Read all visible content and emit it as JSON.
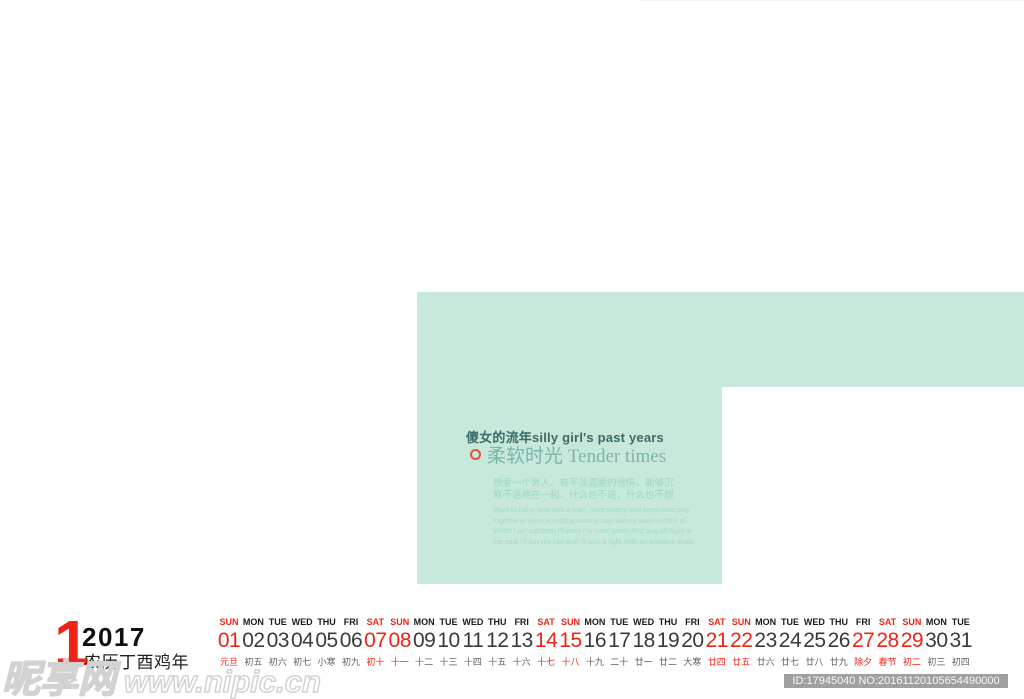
{
  "colors": {
    "mint": "#c6e9db",
    "accent_red": "#ee2417",
    "title_dark_teal": "#3e6a6a",
    "title_teal": "#7eb4ac",
    "watermark_bar_gray": "#a0a0a0"
  },
  "hero": {
    "title_line1": "傻女的流年silly girl's past years",
    "title_line2": "柔软时光 Tender times",
    "paragraph_cn": [
      "想爱一个男人、有平淡温暖的感情，能够沉",
      "默不语地在一起，什么也不说，什么也不想"
    ],
    "paragraph_en": [
      "Want to fall in love with a man ,have watery and warm love,stay",
      "together in silence,nothing want to say,nothing want to think of.",
      "When I am eighteen I'll paint my nose green And sing all night in",
      "the park I'll buy my kite And I'll pick a fight With an imitation shark"
    ]
  },
  "calendar": {
    "month_number": "1",
    "year": "2017",
    "lunar_year_label": "农历丁酉鸡年",
    "days": [
      {
        "dow": "SUN",
        "date": "01",
        "lunar": "元旦",
        "dow_c": "red",
        "date_c": "red",
        "lunar_c": "red"
      },
      {
        "dow": "MON",
        "date": "02",
        "lunar": "初五",
        "dow_c": "",
        "date_c": "",
        "lunar_c": ""
      },
      {
        "dow": "TUE",
        "date": "03",
        "lunar": "初六",
        "dow_c": "",
        "date_c": "",
        "lunar_c": ""
      },
      {
        "dow": "WED",
        "date": "04",
        "lunar": "初七",
        "dow_c": "",
        "date_c": "",
        "lunar_c": ""
      },
      {
        "dow": "THU",
        "date": "05",
        "lunar": "小寒",
        "dow_c": "",
        "date_c": "",
        "lunar_c": ""
      },
      {
        "dow": "FRI",
        "date": "06",
        "lunar": "初九",
        "dow_c": "",
        "date_c": "",
        "lunar_c": ""
      },
      {
        "dow": "SAT",
        "date": "07",
        "lunar": "初十",
        "dow_c": "red",
        "date_c": "red",
        "lunar_c": "red"
      },
      {
        "dow": "SUN",
        "date": "08",
        "lunar": "十一",
        "dow_c": "red",
        "date_c": "red",
        "lunar_c": "red"
      },
      {
        "dow": "MON",
        "date": "09",
        "lunar": "十二",
        "dow_c": "",
        "date_c": "",
        "lunar_c": ""
      },
      {
        "dow": "TUE",
        "date": "10",
        "lunar": "十三",
        "dow_c": "",
        "date_c": "",
        "lunar_c": ""
      },
      {
        "dow": "WED",
        "date": "11",
        "lunar": "十四",
        "dow_c": "",
        "date_c": "",
        "lunar_c": ""
      },
      {
        "dow": "THU",
        "date": "12",
        "lunar": "十五",
        "dow_c": "",
        "date_c": "",
        "lunar_c": ""
      },
      {
        "dow": "FRI",
        "date": "13",
        "lunar": "十六",
        "dow_c": "",
        "date_c": "",
        "lunar_c": ""
      },
      {
        "dow": "SAT",
        "date": "14",
        "lunar": "十七",
        "dow_c": "red",
        "date_c": "red",
        "lunar_c": "red"
      },
      {
        "dow": "SUN",
        "date": "15",
        "lunar": "十八",
        "dow_c": "red",
        "date_c": "red",
        "lunar_c": "red"
      },
      {
        "dow": "MON",
        "date": "16",
        "lunar": "十九",
        "dow_c": "",
        "date_c": "",
        "lunar_c": ""
      },
      {
        "dow": "TUE",
        "date": "17",
        "lunar": "二十",
        "dow_c": "",
        "date_c": "",
        "lunar_c": ""
      },
      {
        "dow": "WED",
        "date": "18",
        "lunar": "廿一",
        "dow_c": "",
        "date_c": "",
        "lunar_c": ""
      },
      {
        "dow": "THU",
        "date": "19",
        "lunar": "廿二",
        "dow_c": "",
        "date_c": "",
        "lunar_c": ""
      },
      {
        "dow": "FRI",
        "date": "20",
        "lunar": "大寒",
        "dow_c": "",
        "date_c": "",
        "lunar_c": ""
      },
      {
        "dow": "SAT",
        "date": "21",
        "lunar": "廿四",
        "dow_c": "red",
        "date_c": "red",
        "lunar_c": "red"
      },
      {
        "dow": "SUN",
        "date": "22",
        "lunar": "廿五",
        "dow_c": "red",
        "date_c": "red",
        "lunar_c": "red"
      },
      {
        "dow": "MON",
        "date": "23",
        "lunar": "廿六",
        "dow_c": "",
        "date_c": "",
        "lunar_c": ""
      },
      {
        "dow": "TUE",
        "date": "24",
        "lunar": "廿七",
        "dow_c": "",
        "date_c": "",
        "lunar_c": ""
      },
      {
        "dow": "WED",
        "date": "25",
        "lunar": "廿八",
        "dow_c": "",
        "date_c": "",
        "lunar_c": ""
      },
      {
        "dow": "THU",
        "date": "26",
        "lunar": "廿九",
        "dow_c": "",
        "date_c": "",
        "lunar_c": ""
      },
      {
        "dow": "FRI",
        "date": "27",
        "lunar": "除夕",
        "dow_c": "",
        "date_c": "red",
        "lunar_c": "red"
      },
      {
        "dow": "SAT",
        "date": "28",
        "lunar": "春节",
        "dow_c": "red",
        "date_c": "red",
        "lunar_c": "red"
      },
      {
        "dow": "SUN",
        "date": "29",
        "lunar": "初二",
        "dow_c": "red",
        "date_c": "red",
        "lunar_c": "red"
      },
      {
        "dow": "MON",
        "date": "30",
        "lunar": "初三",
        "dow_c": "",
        "date_c": "",
        "lunar_c": ""
      },
      {
        "dow": "TUE",
        "date": "31",
        "lunar": "初四",
        "dow_c": "",
        "date_c": "",
        "lunar_c": ""
      }
    ]
  },
  "watermark": {
    "site_name": "昵享网",
    "site_url": "www.nipic.cn",
    "id_label": "ID:17945040 NO:20161120105654490000"
  }
}
